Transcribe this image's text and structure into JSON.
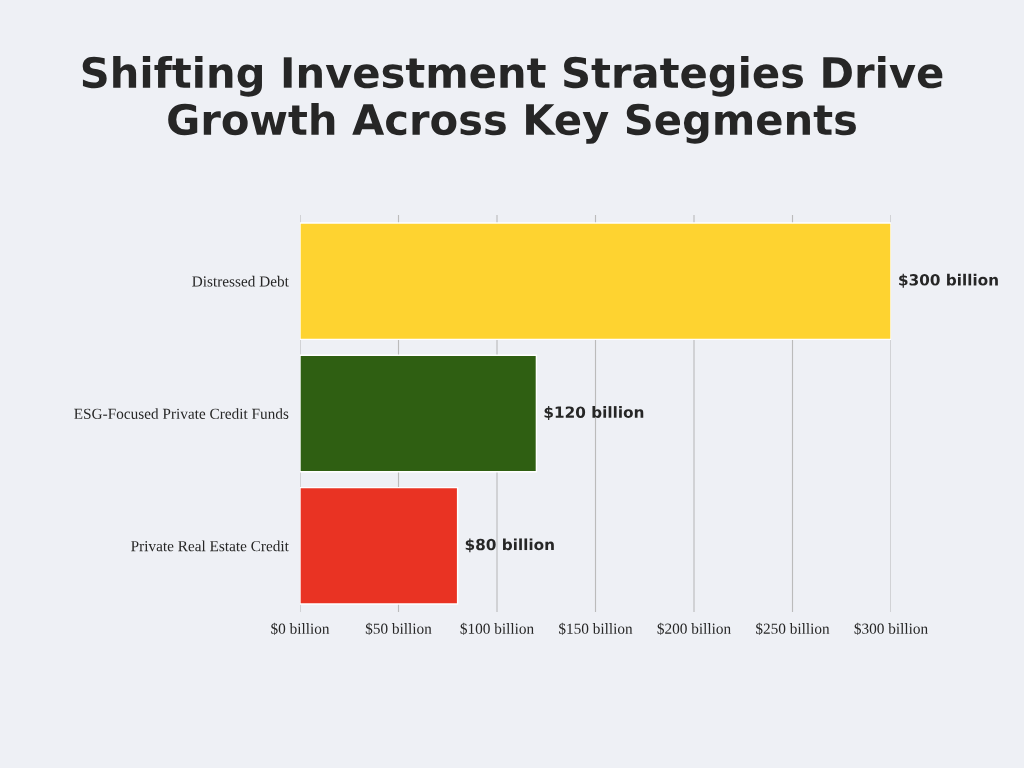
{
  "chart_data": {
    "type": "bar",
    "orientation": "horizontal",
    "title": "Shifting Investment Strategies Drive Growth Across Key Segments",
    "categories": [
      "Distressed Debt",
      "ESG-Focused Private Credit Funds",
      "Private Real Estate Credit"
    ],
    "values": [
      300,
      120,
      80
    ],
    "colors": [
      "#fed330",
      "#2f5f12",
      "#e93323"
    ],
    "value_labels": [
      "$300 billion",
      "$120 billion",
      "$80 billion"
    ],
    "xlim": [
      0,
      300
    ],
    "xticks": [
      {
        "value": 0,
        "label": "$0 billion"
      },
      {
        "value": 50,
        "label": "$50 billion"
      },
      {
        "value": 100,
        "label": "$100 billion"
      },
      {
        "value": 150,
        "label": "$150 billion"
      },
      {
        "value": 200,
        "label": "$200 billion"
      },
      {
        "value": 250,
        "label": "$250 billion"
      },
      {
        "value": 300,
        "label": "$300 billion"
      }
    ],
    "grid": "x"
  }
}
